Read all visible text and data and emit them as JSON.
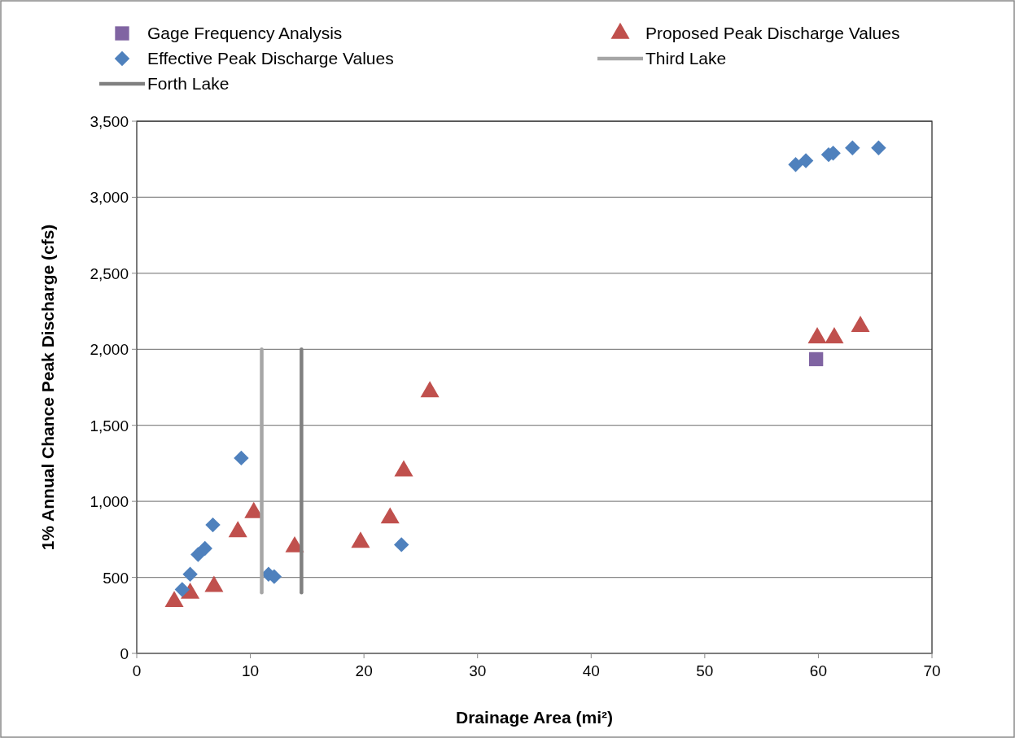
{
  "chart_data": {
    "type": "scatter",
    "xlabel": "Drainage Area (mi²)",
    "ylabel": "1% Annual Chance Peak Discharge (cfs)",
    "xlim": [
      0,
      70
    ],
    "ylim": [
      0,
      3500
    ],
    "xticks": [
      0,
      10,
      20,
      30,
      40,
      50,
      60,
      70
    ],
    "yticks": [
      {
        "value": 0,
        "label": "0"
      },
      {
        "value": 500,
        "label": "500"
      },
      {
        "value": 1000,
        "label": "1,000"
      },
      {
        "value": 1500,
        "label": "1,500"
      },
      {
        "value": 2000,
        "label": "2,000"
      },
      {
        "value": 2500,
        "label": "2,500"
      },
      {
        "value": 3000,
        "label": "3,000"
      },
      {
        "value": 3500,
        "label": "3,500"
      }
    ],
    "grid": "y",
    "legend": "top",
    "series": [
      {
        "name": "Gage Frequency Analysis",
        "marker": "square",
        "color": "#8064a2",
        "x": [
          59.8
        ],
        "values": [
          1935
        ]
      },
      {
        "name": "Proposed Peak Discharge Values",
        "marker": "triangle",
        "color": "#c0504d",
        "x": [
          3.3,
          4.7,
          6.8,
          8.9,
          10.3,
          13.9,
          19.7,
          22.3,
          23.5,
          25.8,
          59.9,
          61.4,
          63.7
        ],
        "values": [
          340,
          395,
          440,
          800,
          925,
          700,
          730,
          890,
          1200,
          1720,
          2075,
          2075,
          2150
        ]
      },
      {
        "name": "Effective Peak Discharge Values",
        "marker": "diamond",
        "color": "#4f81bd",
        "x": [
          4.0,
          4.7,
          5.4,
          6.0,
          6.7,
          9.2,
          11.6,
          12.1,
          23.3,
          58.0,
          58.9,
          60.9,
          61.3,
          63.0,
          65.3
        ],
        "values": [
          420,
          520,
          650,
          690,
          845,
          1285,
          520,
          505,
          715,
          3215,
          3240,
          3280,
          3290,
          3325,
          3325
        ]
      },
      {
        "name": "Third Lake",
        "type": "line",
        "marker": "none",
        "color": "#a6a6a6",
        "x": [
          11,
          11
        ],
        "values": [
          400,
          2000
        ]
      },
      {
        "name": "Forth Lake",
        "type": "line",
        "marker": "none",
        "color": "#808080",
        "x": [
          14.5,
          14.5
        ],
        "values": [
          400,
          2000
        ]
      }
    ]
  }
}
